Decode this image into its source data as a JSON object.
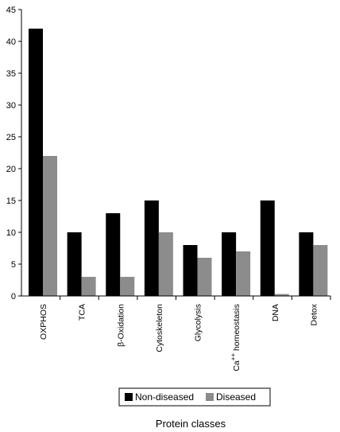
{
  "chart_data": {
    "type": "bar",
    "categories": [
      "OXPHOS",
      "TCA",
      "β-Oxidation",
      "Cytoskeleton",
      "Glycolysis",
      "Ca++ homeostasis",
      "DNA",
      "Detox"
    ],
    "series": [
      {
        "name": "Non-diseased",
        "values": [
          42,
          10,
          13,
          15,
          8,
          10,
          15,
          10
        ],
        "color": "#000000"
      },
      {
        "name": "Diseased",
        "values": [
          22,
          3,
          3,
          10,
          6,
          7,
          0.3,
          8
        ],
        "color": "#8c8c8c"
      }
    ],
    "title": "",
    "xlabel": "Protein classes",
    "ylabel": "",
    "ylim": [
      0,
      45
    ],
    "yticks": [
      0,
      5,
      10,
      15,
      20,
      25,
      30,
      35,
      40,
      45
    ],
    "legend_position": "bottom-center"
  }
}
